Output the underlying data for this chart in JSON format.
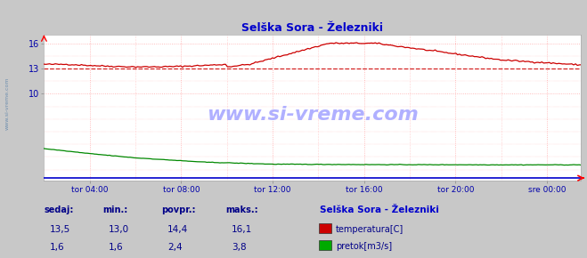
{
  "title": "Selška Sora - Železniki",
  "outer_bg": "#c8c8c8",
  "plot_bg": "#ffffff",
  "left_margin_bg": "#dcdcdc",
  "grid_color": "#ffaaaa",
  "avg_line_color": "#cc0000",
  "avg_line_value": 13.0,
  "x_labels": [
    "tor 04:00",
    "tor 08:00",
    "tor 12:00",
    "tor 16:00",
    "tor 20:00",
    "sre 00:00"
  ],
  "x_tick_hours": [
    4,
    8,
    12,
    16,
    20,
    24
  ],
  "y_ticks": [
    16,
    13,
    10
  ],
  "ylim": [
    -0.3,
    17.0
  ],
  "xlim_start": 2.0,
  "xlim_end": 25.5,
  "watermark": "www.si-vreme.com",
  "watermark_color": "#b0b0ff",
  "temp_color": "#cc0000",
  "pretok_color": "#008800",
  "blue_line_color": "#0000cc",
  "axis_color": "#0000aa",
  "title_color": "#0000cc",
  "stats_label_color": "#000088",
  "stats_headers": [
    "sedaj:",
    "min.:",
    "povpr.:",
    "maks.:"
  ],
  "stats_temp": [
    "13,5",
    "13,0",
    "14,4",
    "16,1"
  ],
  "stats_pretok": [
    "1,6",
    "1,6",
    "2,4",
    "3,8"
  ],
  "legend_title": "Selška Sora - Železniki",
  "legend_items": [
    {
      "label": "temperatura[C]",
      "color": "#cc0000"
    },
    {
      "label": "pretok[m3/s]",
      "color": "#00aa00"
    }
  ]
}
